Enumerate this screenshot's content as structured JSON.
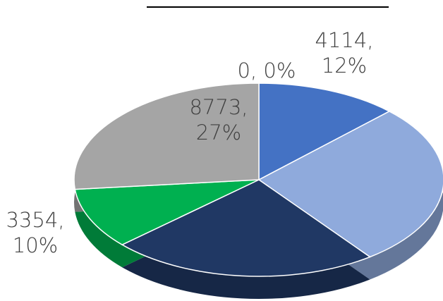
{
  "chart_data": {
    "type": "pie",
    "categories": [
      null,
      null,
      null,
      null,
      null,
      null
    ],
    "values": [
      4114,
      9000,
      7759,
      3354,
      8773,
      0
    ],
    "value_labels": [
      "4114, 12%",
      null,
      null,
      "3354, 10%",
      "8773, 27%",
      "0, 0%"
    ],
    "colors": [
      "#4472c4",
      "#8faadc",
      "#203864",
      "#00b050",
      "#a5a5a5",
      "#7f7f7f"
    ]
  }
}
